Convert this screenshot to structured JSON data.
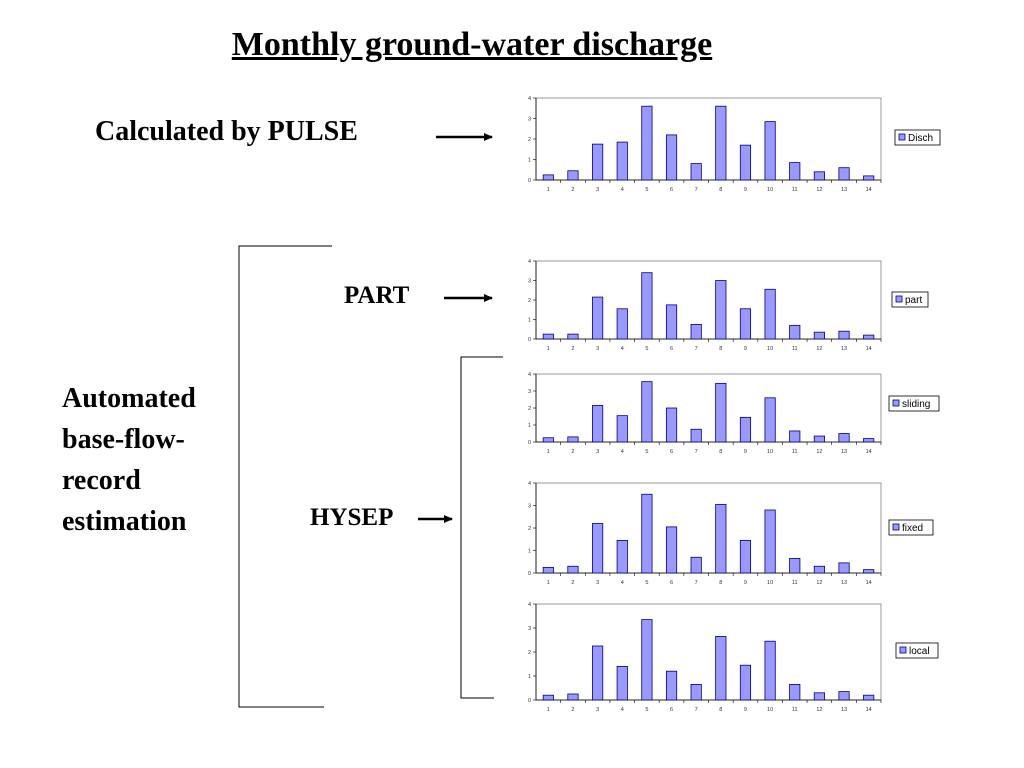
{
  "page": {
    "title": "Monthly ground-water discharge",
    "label_pulse": "Calculated by PULSE",
    "label_part": "PART",
    "label_hysep": "HYSEP",
    "label_automated": [
      "Automated",
      "base-flow-",
      "record",
      "estimation"
    ]
  },
  "colors": {
    "bar_fill": "#9999ff",
    "bar_stroke": "#000080",
    "axis": "#808080"
  },
  "chart_data": [
    {
      "type": "bar",
      "legend": "Disch",
      "legend_placement": "right",
      "categories": [
        "1",
        "2",
        "3",
        "4",
        "5",
        "6",
        "7",
        "8",
        "9",
        "10",
        "11",
        "12",
        "13",
        "14"
      ],
      "values": [
        0.25,
        0.45,
        1.75,
        1.85,
        3.6,
        2.2,
        0.8,
        3.6,
        1.7,
        2.85,
        0.85,
        0.4,
        0.6,
        0.2
      ],
      "ylim": [
        0,
        4
      ],
      "yticks": [
        "0",
        "1",
        "2",
        "3",
        "4"
      ]
    },
    {
      "type": "bar",
      "legend": "part",
      "legend_placement": "right",
      "categories": [
        "1",
        "2",
        "3",
        "4",
        "5",
        "6",
        "7",
        "8",
        "9",
        "10",
        "11",
        "12",
        "13",
        "14"
      ],
      "values": [
        0.25,
        0.25,
        2.15,
        1.55,
        3.4,
        1.75,
        0.75,
        3.0,
        1.55,
        2.55,
        0.7,
        0.35,
        0.4,
        0.2
      ],
      "ylim": [
        0,
        4
      ],
      "yticks": [
        "0",
        "1",
        "2",
        "3",
        "4"
      ]
    },
    {
      "type": "bar",
      "legend": "sliding",
      "legend_placement": "right",
      "categories": [
        "1",
        "2",
        "3",
        "4",
        "5",
        "6",
        "7",
        "8",
        "9",
        "10",
        "11",
        "12",
        "13",
        "14"
      ],
      "values": [
        0.25,
        0.3,
        2.15,
        1.55,
        3.55,
        2.0,
        0.75,
        3.45,
        1.45,
        2.6,
        0.65,
        0.35,
        0.5,
        0.2
      ],
      "ylim": [
        0,
        4
      ],
      "yticks": [
        "0",
        "1",
        "2",
        "3",
        "4"
      ]
    },
    {
      "type": "bar",
      "legend": "fixed",
      "legend_placement": "right",
      "categories": [
        "1",
        "2",
        "3",
        "4",
        "5",
        "6",
        "7",
        "8",
        "9",
        "10",
        "11",
        "12",
        "13",
        "14"
      ],
      "values": [
        0.25,
        0.3,
        2.2,
        1.45,
        3.5,
        2.05,
        0.7,
        3.05,
        1.45,
        2.8,
        0.65,
        0.3,
        0.45,
        0.15
      ],
      "ylim": [
        0,
        4
      ],
      "yticks": [
        "0",
        "1",
        "2",
        "3",
        "4"
      ]
    },
    {
      "type": "bar",
      "legend": "local",
      "legend_placement": "right",
      "categories": [
        "1",
        "2",
        "3",
        "4",
        "5",
        "6",
        "7",
        "8",
        "9",
        "10",
        "11",
        "12",
        "13",
        "14"
      ],
      "values": [
        0.2,
        0.25,
        2.25,
        1.4,
        3.35,
        1.2,
        0.65,
        2.65,
        1.45,
        2.45,
        0.65,
        0.3,
        0.35,
        0.2
      ],
      "ylim": [
        0,
        4
      ],
      "yticks": [
        "0",
        "1",
        "2",
        "3",
        "4"
      ]
    }
  ]
}
